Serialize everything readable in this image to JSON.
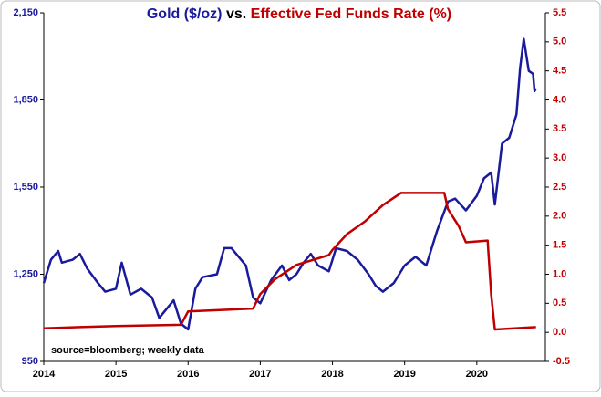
{
  "chart_data": {
    "type": "line",
    "title_connector": "vs.",
    "annotation": "source=bloomberg; weekly data",
    "xlim": [
      2014,
      2020.95
    ],
    "xticks": [
      2014,
      2015,
      2016,
      2017,
      2018,
      2019,
      2020
    ],
    "ylim": [
      950,
      2150
    ],
    "yticks": [
      {
        "value": 950,
        "label": "950"
      },
      {
        "value": 1250,
        "label": "1,250"
      },
      {
        "value": 1550,
        "label": "1,550"
      },
      {
        "value": 1850,
        "label": "1,850"
      },
      {
        "value": 2150,
        "label": "2,150"
      }
    ],
    "y2lim": [
      -0.5,
      5.5
    ],
    "y2ticks": [
      -0.5,
      {
        "value": 0,
        "label": "0.0"
      },
      0.5,
      {
        "value": 1,
        "label": "1.0"
      },
      1.5,
      {
        "value": 2,
        "label": "2.0"
      },
      2.5,
      {
        "value": 3,
        "label": "3.0"
      },
      3.5,
      {
        "value": 4,
        "label": "4.0"
      },
      4.5,
      {
        "value": 5,
        "label": "5.0"
      },
      5.5
    ],
    "series": [
      {
        "name": "Gold ($/oz)",
        "color": "#1a1a9c",
        "axis": "y",
        "x": [
          2014.0,
          2014.1,
          2014.2,
          2014.25,
          2014.4,
          2014.5,
          2014.6,
          2014.75,
          2014.85,
          2015.0,
          2015.08,
          2015.2,
          2015.35,
          2015.5,
          2015.6,
          2015.7,
          2015.8,
          2015.9,
          2016.0,
          2016.1,
          2016.2,
          2016.4,
          2016.5,
          2016.6,
          2016.8,
          2016.9,
          2017.0,
          2017.15,
          2017.3,
          2017.4,
          2017.5,
          2017.6,
          2017.7,
          2017.8,
          2017.95,
          2018.05,
          2018.2,
          2018.35,
          2018.5,
          2018.6,
          2018.7,
          2018.85,
          2019.0,
          2019.15,
          2019.3,
          2019.45,
          2019.6,
          2019.7,
          2019.85,
          2020.0,
          2020.1,
          2020.2,
          2020.25,
          2020.35,
          2020.45,
          2020.55,
          2020.6,
          2020.65,
          2020.72,
          2020.78,
          2020.8,
          2020.82
        ],
        "values": [
          1220,
          1300,
          1330,
          1290,
          1300,
          1320,
          1270,
          1220,
          1190,
          1200,
          1290,
          1180,
          1200,
          1170,
          1100,
          1130,
          1160,
          1080,
          1060,
          1200,
          1240,
          1250,
          1340,
          1340,
          1280,
          1170,
          1150,
          1230,
          1280,
          1230,
          1250,
          1290,
          1320,
          1280,
          1260,
          1340,
          1330,
          1300,
          1250,
          1210,
          1190,
          1220,
          1280,
          1310,
          1280,
          1400,
          1500,
          1510,
          1470,
          1520,
          1580,
          1600,
          1490,
          1700,
          1720,
          1800,
          1960,
          2060,
          1950,
          1940,
          1880,
          1890
        ]
      },
      {
        "name": "Effective Fed Funds Rate (%)",
        "color": "#c00000",
        "axis": "y2",
        "x": [
          2014.0,
          2014.5,
          2015.0,
          2015.9,
          2016.0,
          2016.9,
          2017.0,
          2017.2,
          2017.5,
          2017.95,
          2018.0,
          2018.2,
          2018.45,
          2018.7,
          2018.95,
          2019.55,
          2019.6,
          2019.75,
          2019.85,
          2020.15,
          2020.2,
          2020.25,
          2020.82
        ],
        "values": [
          0.07,
          0.09,
          0.11,
          0.13,
          0.36,
          0.41,
          0.66,
          0.91,
          1.16,
          1.33,
          1.42,
          1.69,
          1.91,
          2.19,
          2.4,
          2.4,
          2.12,
          1.83,
          1.55,
          1.58,
          0.65,
          0.05,
          0.09
        ]
      }
    ]
  }
}
